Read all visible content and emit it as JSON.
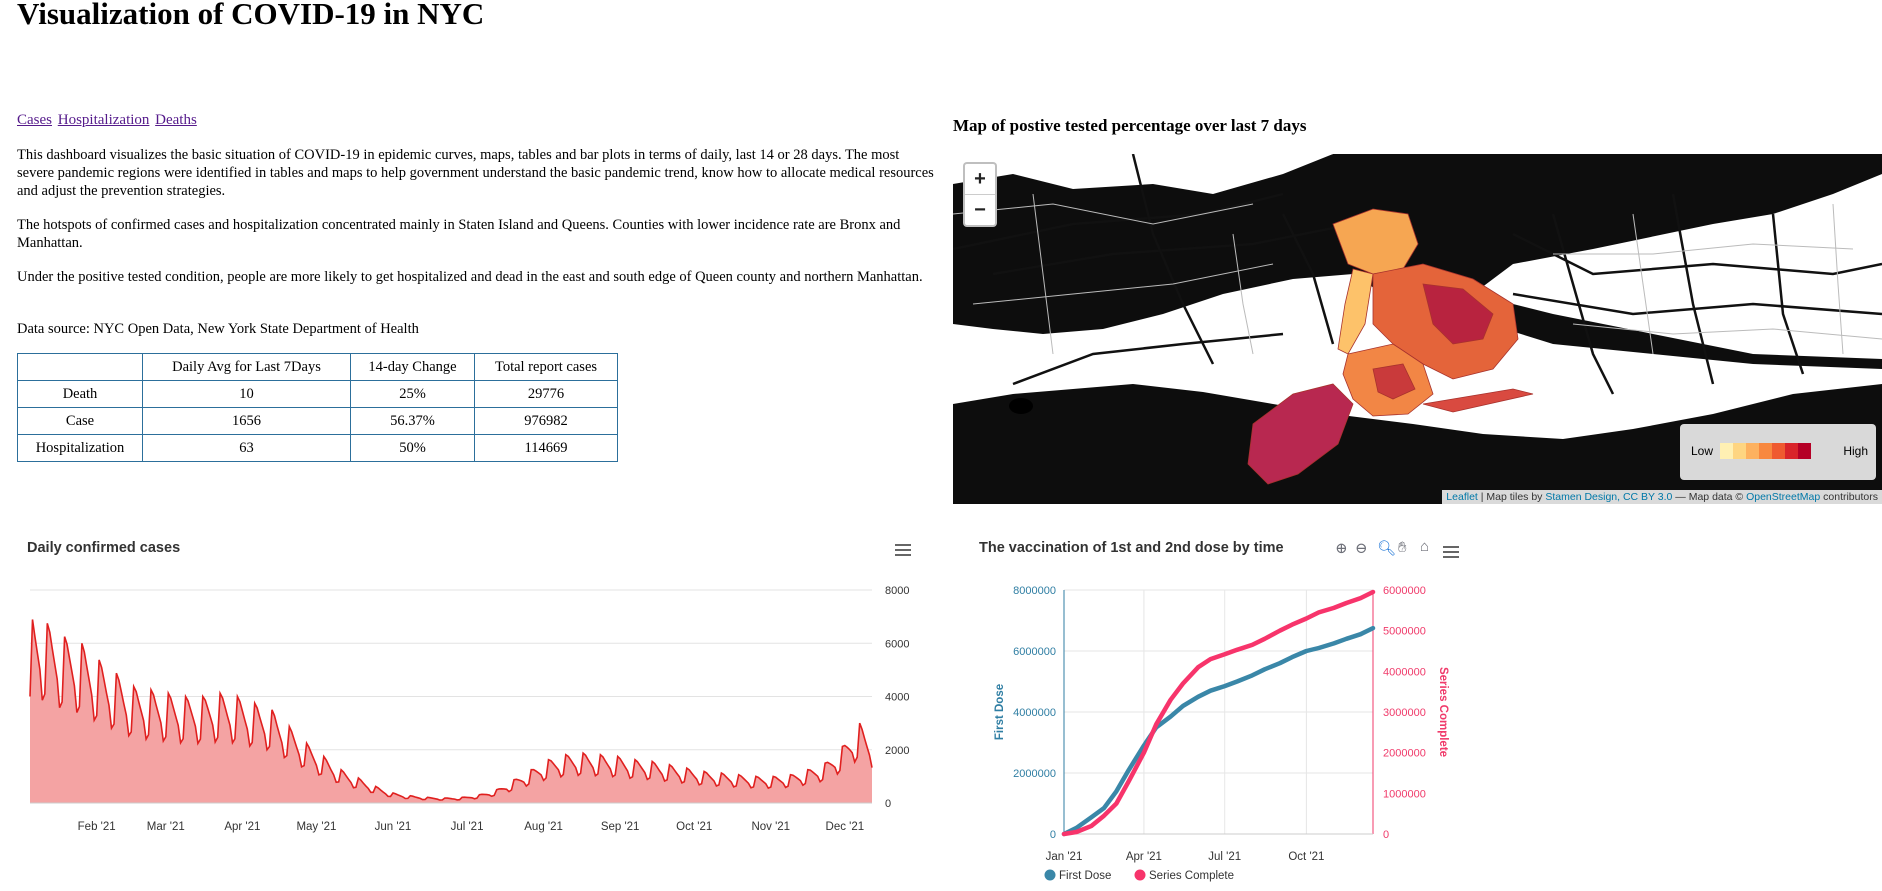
{
  "page": {
    "title": "Visualization of COVID-19 in NYC",
    "nav_links": [
      "Cases",
      "Hospitalization",
      "Deaths"
    ],
    "paragraphs": [
      "This dashboard visualizes the basic situation of COVID-19 in epidemic curves, maps, tables and bar plots in terms of daily, last 14 or 28 days. The most severe pandemic regions were identified in tables and maps to help government understand the basic pandemic trend, know how to allocate medical resources and adjust the prevention strategies.",
      "The hotspots of confirmed cases and hospitalization concentrated mainly in Staten Island and Queens. Counties with lower incidence rate are Bronx and Manhattan.",
      "Under the positive tested condition, people are more likely to get hospitalized and dead in the east and south edge of Queen county and northern Manhattan.",
      "Data source: NYC Open Data, New York State Department of Health"
    ]
  },
  "table": {
    "headers": [
      "",
      "Daily Avg for Last 7Days",
      "14-day Change",
      "Total report cases"
    ],
    "rows": [
      [
        "Death",
        "10",
        "25%",
        "29776"
      ],
      [
        "Case",
        "1656",
        "56.37%",
        "976982"
      ],
      [
        "Hospitalization",
        "63",
        "50%",
        "114669"
      ]
    ]
  },
  "map": {
    "title": "Map of postive tested percentage over last 7 days",
    "zoom_in": "+",
    "zoom_out": "−",
    "legend_low": "Low",
    "legend_high": "High",
    "legend_colors": [
      "#fff0b3",
      "#fed581",
      "#fdb15f",
      "#f8883f",
      "#ef5a30",
      "#d9242a",
      "#b50026"
    ],
    "attribution": {
      "leaflet": "Leaflet",
      "tiles_prefix": " | Map tiles by ",
      "stamen": "Stamen Design, CC BY 3.0",
      "mid": " — Map data © ",
      "osm": "OpenStreetMap",
      "suffix": " contributors"
    }
  },
  "chart_data": [
    {
      "type": "area",
      "title": "Daily confirmed cases",
      "xlabel": "",
      "ylabel": "",
      "x_ticks": [
        "Feb '21",
        "Mar '21",
        "Apr '21",
        "May '21",
        "Jun '21",
        "Jul '21",
        "Aug '21",
        "Sep '21",
        "Oct '21",
        "Nov '21",
        "Dec '21"
      ],
      "y_ticks": [
        0,
        2000,
        4000,
        6000,
        8000
      ],
      "ylim": [
        0,
        8000
      ],
      "x_range": [
        "2021-01-05",
        "2021-12-12"
      ],
      "weekly_trend": [
        [
          "2021-01-05",
          5800
        ],
        [
          "2021-01-12",
          5400
        ],
        [
          "2021-01-19",
          5000
        ],
        [
          "2021-01-26",
          4800
        ],
        [
          "2021-02-02",
          4300
        ],
        [
          "2021-02-09",
          3900
        ],
        [
          "2021-02-16",
          3500
        ],
        [
          "2021-02-23",
          3400
        ],
        [
          "2021-03-02",
          3300
        ],
        [
          "2021-03-09",
          3200
        ],
        [
          "2021-03-16",
          3200
        ],
        [
          "2021-03-23",
          3300
        ],
        [
          "2021-03-30",
          3200
        ],
        [
          "2021-04-06",
          3000
        ],
        [
          "2021-04-13",
          2800
        ],
        [
          "2021-04-20",
          2300
        ],
        [
          "2021-04-27",
          1800
        ],
        [
          "2021-05-04",
          1400
        ],
        [
          "2021-05-11",
          1000
        ],
        [
          "2021-05-18",
          750
        ],
        [
          "2021-05-25",
          500
        ],
        [
          "2021-06-01",
          300
        ],
        [
          "2021-06-08",
          220
        ],
        [
          "2021-06-15",
          170
        ],
        [
          "2021-06-22",
          150
        ],
        [
          "2021-06-29",
          170
        ],
        [
          "2021-07-06",
          250
        ],
        [
          "2021-07-13",
          400
        ],
        [
          "2021-07-20",
          700
        ],
        [
          "2021-07-27",
          1000
        ],
        [
          "2021-08-03",
          1300
        ],
        [
          "2021-08-10",
          1450
        ],
        [
          "2021-08-17",
          1500
        ],
        [
          "2021-08-24",
          1450
        ],
        [
          "2021-08-31",
          1400
        ],
        [
          "2021-09-07",
          1300
        ],
        [
          "2021-09-14",
          1250
        ],
        [
          "2021-09-21",
          1150
        ],
        [
          "2021-09-28",
          1050
        ],
        [
          "2021-10-05",
          950
        ],
        [
          "2021-10-12",
          900
        ],
        [
          "2021-10-19",
          850
        ],
        [
          "2021-10-26",
          800
        ],
        [
          "2021-11-02",
          800
        ],
        [
          "2021-11-09",
          850
        ],
        [
          "2021-11-16",
          1000
        ],
        [
          "2021-11-23",
          1200
        ],
        [
          "2021-11-30",
          1700
        ],
        [
          "2021-12-07",
          2400
        ],
        [
          "2021-12-12",
          1900
        ]
      ],
      "line_color": "#e0201f",
      "fill_color": "#f4a3a3"
    },
    {
      "type": "line",
      "title": "The vaccination of 1st and 2nd dose by time",
      "x_ticks": [
        "Jan '21",
        "Apr '21",
        "Jul '21",
        "Oct '21"
      ],
      "x_range": [
        "2021-01-01",
        "2021-12-15"
      ],
      "y_left": {
        "label": "First Dose",
        "ticks": [
          0,
          2000000,
          4000000,
          6000000,
          8000000
        ],
        "range": [
          0,
          8000000
        ],
        "color": "#2f7ea3"
      },
      "y_right": {
        "label": "Series Complete",
        "ticks": [
          0,
          1000000,
          2000000,
          3000000,
          4000000,
          5000000,
          6000000
        ],
        "range": [
          0,
          6000000
        ],
        "color": "#f03a6a"
      },
      "series": [
        {
          "name": "First Dose",
          "axis": "left",
          "color": "#3a87a8",
          "points": [
            [
              "2021-01-01",
              0
            ],
            [
              "2021-01-15",
              200000
            ],
            [
              "2021-02-01",
              550000
            ],
            [
              "2021-02-15",
              850000
            ],
            [
              "2021-03-01",
              1400000
            ],
            [
              "2021-03-15",
              2100000
            ],
            [
              "2021-04-01",
              2900000
            ],
            [
              "2021-04-15",
              3500000
            ],
            [
              "2021-05-01",
              3850000
            ],
            [
              "2021-05-15",
              4200000
            ],
            [
              "2021-06-01",
              4500000
            ],
            [
              "2021-06-15",
              4700000
            ],
            [
              "2021-07-01",
              4850000
            ],
            [
              "2021-07-15",
              5000000
            ],
            [
              "2021-08-01",
              5200000
            ],
            [
              "2021-08-15",
              5400000
            ],
            [
              "2021-09-01",
              5600000
            ],
            [
              "2021-09-15",
              5800000
            ],
            [
              "2021-10-01",
              6000000
            ],
            [
              "2021-10-15",
              6100000
            ],
            [
              "2021-11-01",
              6250000
            ],
            [
              "2021-11-15",
              6400000
            ],
            [
              "2021-12-01",
              6550000
            ],
            [
              "2021-12-15",
              6750000
            ]
          ]
        },
        {
          "name": "Series Complete",
          "axis": "right",
          "color": "#f7346b",
          "points": [
            [
              "2021-01-01",
              0
            ],
            [
              "2021-01-15",
              50000
            ],
            [
              "2021-02-01",
              200000
            ],
            [
              "2021-02-15",
              450000
            ],
            [
              "2021-03-01",
              750000
            ],
            [
              "2021-03-15",
              1300000
            ],
            [
              "2021-04-01",
              2000000
            ],
            [
              "2021-04-15",
              2700000
            ],
            [
              "2021-05-01",
              3300000
            ],
            [
              "2021-05-15",
              3700000
            ],
            [
              "2021-06-01",
              4100000
            ],
            [
              "2021-06-15",
              4300000
            ],
            [
              "2021-07-01",
              4420000
            ],
            [
              "2021-07-15",
              4530000
            ],
            [
              "2021-08-01",
              4650000
            ],
            [
              "2021-08-15",
              4800000
            ],
            [
              "2021-09-01",
              5000000
            ],
            [
              "2021-09-15",
              5150000
            ],
            [
              "2021-10-01",
              5300000
            ],
            [
              "2021-10-15",
              5450000
            ],
            [
              "2021-11-01",
              5560000
            ],
            [
              "2021-11-15",
              5680000
            ],
            [
              "2021-12-01",
              5800000
            ],
            [
              "2021-12-15",
              5950000
            ]
          ]
        }
      ]
    }
  ]
}
